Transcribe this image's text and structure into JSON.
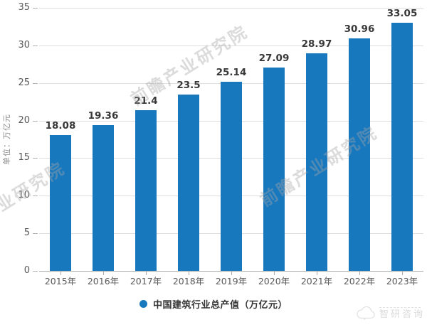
{
  "chart_data": {
    "type": "bar",
    "title": "",
    "categories": [
      "2015年",
      "2016年",
      "2017年",
      "2018年",
      "2019年",
      "2020年",
      "2021年",
      "2022年",
      "2023年"
    ],
    "values": [
      18.08,
      19.36,
      21.4,
      23.5,
      25.14,
      27.09,
      28.97,
      30.96,
      33.05
    ],
    "value_labels": [
      "18.08",
      "19.36",
      "21.4",
      "23.5",
      "25.14",
      "27.09",
      "28.97",
      "30.96",
      "33.05"
    ],
    "xlabel": "",
    "ylabel": "单位：万亿元",
    "ylim": [
      0,
      35
    ],
    "yticks": [
      0,
      5,
      10,
      15,
      20,
      25,
      30,
      35
    ],
    "grid": true,
    "bar_color": "#1878be",
    "legend": {
      "label": "中国建筑行业总产值（万亿元）",
      "position": "bottom",
      "marker_color": "#1878be"
    }
  },
  "watermark": {
    "text": "前瞻产业研究院",
    "color": "rgba(165,165,165,0.40)"
  },
  "corner_logo": {
    "text": "智研咨询",
    "icon": "cloud-icon"
  }
}
